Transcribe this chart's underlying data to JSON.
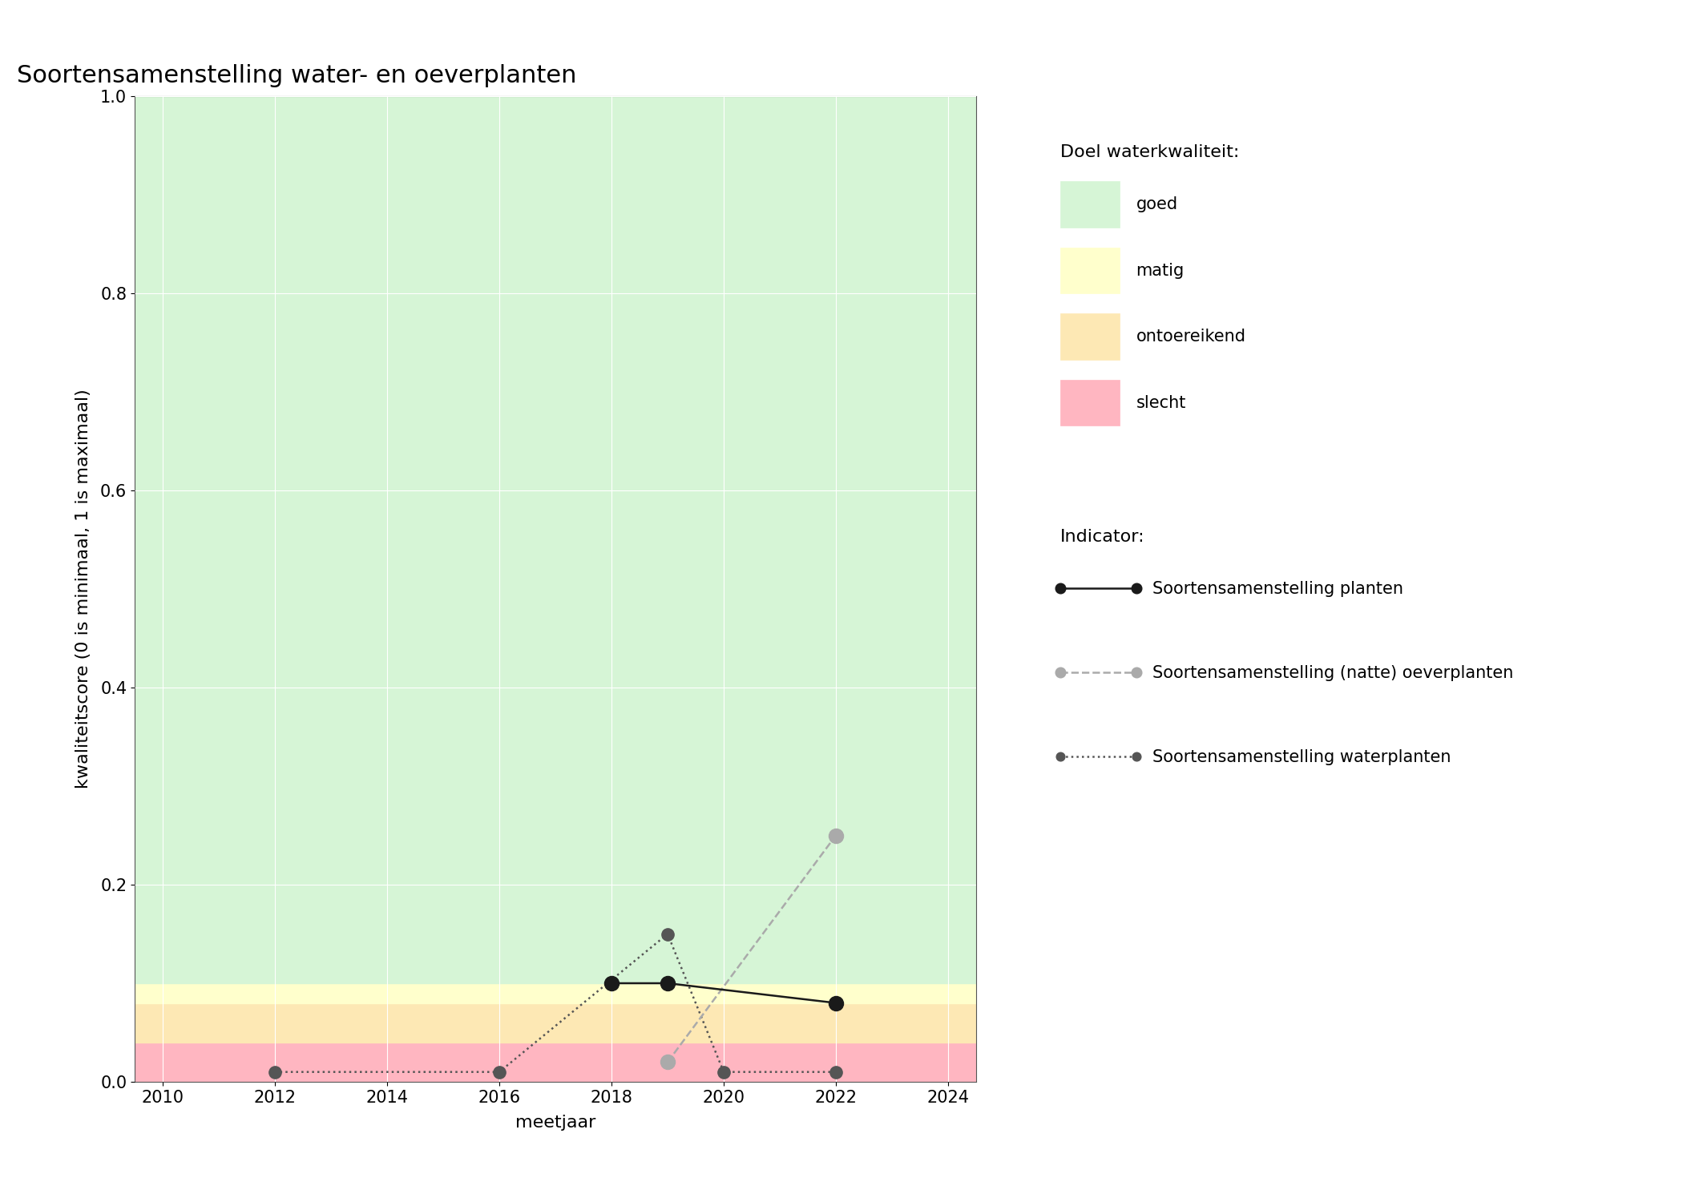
{
  "title": "Soortensamenstelling water- en oeverplanten",
  "xlabel": "meetjaar",
  "ylabel": "kwaliteitscore (0 is minimaal, 1 is maximaal)",
  "xlim": [
    2009.5,
    2024.5
  ],
  "ylim": [
    0.0,
    1.0
  ],
  "xticks": [
    2010,
    2012,
    2014,
    2016,
    2018,
    2020,
    2022,
    2024
  ],
  "yticks": [
    0.0,
    0.2,
    0.4,
    0.6,
    0.8,
    1.0
  ],
  "bg_zones": [
    {
      "ymin": 0.0,
      "ymax": 0.04,
      "color": "#ffb6c1",
      "label": "slecht"
    },
    {
      "ymin": 0.04,
      "ymax": 0.08,
      "color": "#fde8b4",
      "label": "ontoereikend"
    },
    {
      "ymin": 0.08,
      "ymax": 0.1,
      "color": "#ffffcc",
      "label": "matig"
    },
    {
      "ymin": 0.1,
      "ymax": 1.0,
      "color": "#d6f5d6",
      "label": "goed"
    }
  ],
  "series": [
    {
      "label": "Soortensamenstelling planten",
      "x": [
        2018,
        2019,
        2022
      ],
      "y": [
        0.1,
        0.1,
        0.08
      ],
      "color": "#1a1a1a",
      "linestyle": "-",
      "linewidth": 1.8,
      "markersize": 13,
      "marker": "o",
      "zorder": 5
    },
    {
      "label": "Soortensamenstelling (natte) oeverplanten",
      "x": [
        2019,
        2022
      ],
      "y": [
        0.02,
        0.25
      ],
      "color": "#aaaaaa",
      "linestyle": "--",
      "linewidth": 1.8,
      "markersize": 13,
      "marker": "o",
      "zorder": 4
    },
    {
      "label": "Soortensamenstelling waterplanten",
      "x": [
        2012,
        2016,
        2019,
        2020,
        2022
      ],
      "y": [
        0.01,
        0.01,
        0.15,
        0.01,
        0.01
      ],
      "color": "#555555",
      "linestyle": ":",
      "linewidth": 1.8,
      "markersize": 11,
      "marker": "o",
      "zorder": 3
    }
  ],
  "legend_quality_title": "Doel waterkwaliteit:",
  "legend_indicator_title": "Indicator:",
  "legend_colors": {
    "goed": "#d6f5d6",
    "matig": "#ffffcc",
    "ontoereikend": "#fde8b4",
    "slecht": "#ffb6c1"
  },
  "title_fontsize": 22,
  "axis_label_fontsize": 16,
  "tick_fontsize": 15,
  "legend_title_fontsize": 16,
  "legend_fontsize": 15
}
